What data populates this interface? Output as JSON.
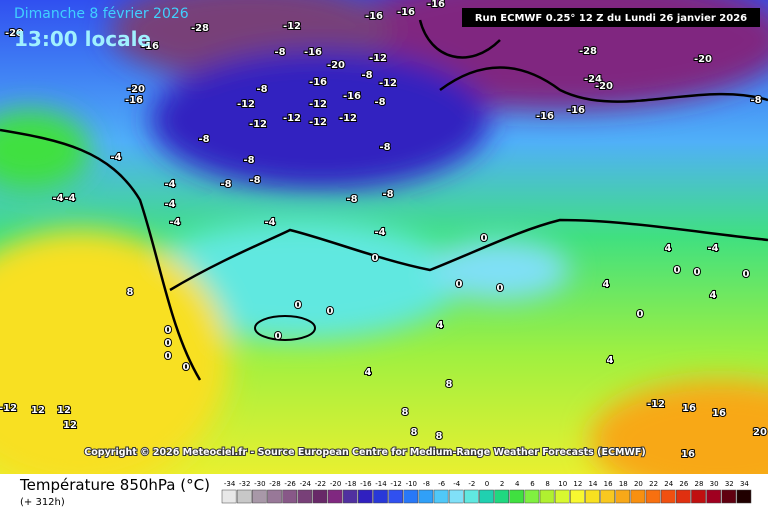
{
  "header": {
    "date": "Dimanche 8 février 2026",
    "time": "13:00 locale",
    "run": "Run ECMWF 0.25° 12 Z du Lundi 26 janvier 2026"
  },
  "copyright": "Copyright © 2026 Meteociel.fr - Source European Centre for Medium-Range Weather Forecasts (ECMWF)",
  "legend": {
    "title": "Température 850hPa (°C)",
    "subtitle": "(+ 312h)",
    "ticks": [
      -34,
      -32,
      -30,
      -28,
      -26,
      -24,
      -22,
      -20,
      -18,
      -16,
      -14,
      -12,
      -10,
      -8,
      -6,
      -4,
      -2,
      0,
      2,
      4,
      6,
      8,
      10,
      12,
      14,
      16,
      18,
      20,
      22,
      24,
      26,
      28,
      30,
      32,
      34
    ],
    "colors": [
      "#e8e8e8",
      "#c8c8c8",
      "#a898a8",
      "#987898",
      "#885888",
      "#784078",
      "#682868",
      "#802880",
      "#5030a0",
      "#3020c0",
      "#2838d8",
      "#3050f0",
      "#2878f8",
      "#30a0f8",
      "#50c8f8",
      "#80e0f8",
      "#60e8e0",
      "#20d0b0",
      "#20d880",
      "#40e040",
      "#80f040",
      "#b0f030",
      "#d8f830",
      "#f8f830",
      "#f8e020",
      "#f8c820",
      "#f8a818",
      "#f89010",
      "#f87010",
      "#f05010",
      "#e03010",
      "#c01010",
      "#a00020",
      "#600010",
      "#200000"
    ]
  },
  "contour_labels": [
    -20,
    -28,
    -12,
    -16,
    -16,
    -16,
    -16,
    -8,
    -16,
    -20,
    -12,
    -8,
    -12,
    -16,
    -16,
    -12,
    -8,
    -20,
    -16,
    -8,
    -12,
    -12,
    -12,
    -12,
    -12,
    -8,
    -8,
    -4,
    -8,
    -8,
    -8,
    -8,
    -8,
    -4,
    -4,
    -4,
    -4,
    -4,
    -4,
    -4,
    -28,
    -24,
    -20,
    -20,
    -16,
    -16,
    -8,
    -4,
    0,
    0,
    0,
    0,
    0,
    0,
    0,
    0,
    0,
    0,
    0,
    4,
    4,
    4,
    4,
    4,
    4,
    8,
    8,
    8,
    8,
    8,
    0,
    0,
    0,
    0,
    -12,
    12,
    12,
    12,
    -12,
    16,
    16,
    20,
    16
  ]
}
